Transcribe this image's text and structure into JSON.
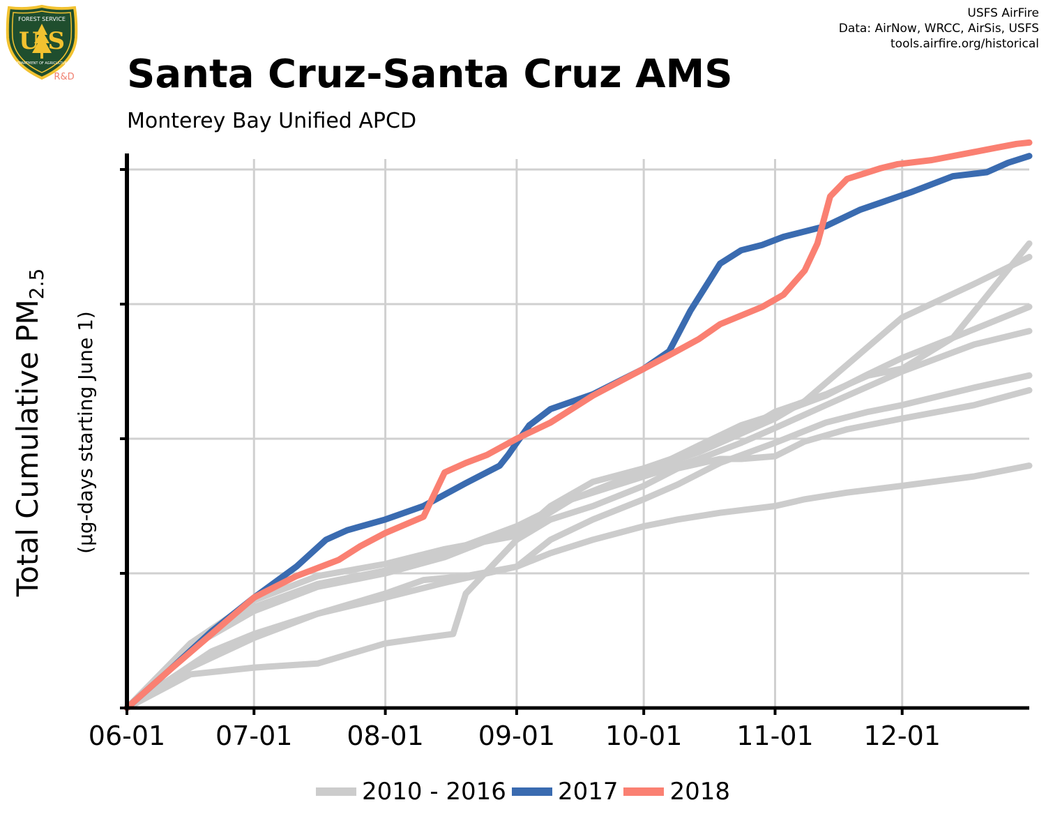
{
  "header": {
    "title": "Santa Cruz-Santa Cruz AMS",
    "subtitle": "Monterey Bay Unified APCD",
    "credits": [
      "USFS AirFire",
      "Data: AirNow, WRCC, AirSis, USFS",
      "tools.airfire.org/historical"
    ]
  },
  "logo": {
    "text_top": "FOREST SERVICE",
    "text_center": "U S",
    "text_bottom": "DEPARTMENT OF AGRICULTURE",
    "text_rd": "R&D",
    "colors": {
      "shield": "#1f4e2e",
      "border": "#f2c230",
      "letters": "#f2c230",
      "rd": "#f08070"
    }
  },
  "chart_data": {
    "type": "line",
    "title": "Santa Cruz-Santa Cruz AMS",
    "subtitle": "Monterey Bay Unified APCD",
    "ylabel_main": "Total Cumulative PM",
    "ylabel_sub": "2.5",
    "ylabel_note": "(µg-days starting June 1)",
    "x_tick_labels": [
      "06-01",
      "07-01",
      "08-01",
      "09-01",
      "10-01",
      "11-01",
      "12-01"
    ],
    "x_tick_days": [
      0,
      30,
      61,
      92,
      122,
      153,
      183
    ],
    "xlim": [
      0,
      213
    ],
    "ylim": [
      0,
      4.12
    ],
    "y_gridlines": [
      1,
      2,
      3,
      4
    ],
    "y_tick_labels_shown": false,
    "grid": true,
    "legend_position": "bottom",
    "legend": [
      {
        "label": "2010 - 2016",
        "color": "#cccccc"
      },
      {
        "label": "2017",
        "color": "#3a6bb0"
      },
      {
        "label": "2018",
        "color": "#fa8072"
      }
    ],
    "series": [
      {
        "group": "2010 - 2016",
        "color": "#cccccc",
        "x": [
          0,
          15,
          30,
          45,
          61,
          70,
          77,
          80,
          92,
          100,
          110,
          122,
          130,
          140,
          145,
          153,
          160,
          170,
          183,
          200,
          213
        ],
        "y": [
          0,
          0.25,
          0.3,
          0.33,
          0.48,
          0.52,
          0.55,
          0.85,
          1.25,
          1.4,
          1.5,
          1.65,
          1.78,
          1.85,
          1.85,
          1.87,
          1.98,
          2.07,
          2.15,
          2.25,
          2.36
        ]
      },
      {
        "group": "2010 - 2016",
        "color": "#cccccc",
        "x": [
          0,
          20,
          30,
          45,
          61,
          70,
          80,
          92,
          100,
          110,
          122,
          130,
          140,
          153,
          160,
          170,
          183,
          200,
          213
        ],
        "y": [
          0,
          0.42,
          0.55,
          0.7,
          0.85,
          0.95,
          0.98,
          1.05,
          1.15,
          1.25,
          1.35,
          1.4,
          1.45,
          1.5,
          1.55,
          1.6,
          1.65,
          1.72,
          1.8
        ]
      },
      {
        "group": "2010 - 2016",
        "color": "#cccccc",
        "x": [
          0,
          15,
          30,
          45,
          61,
          75,
          92,
          100,
          110,
          122,
          130,
          140,
          153,
          165,
          175,
          183,
          200,
          213
        ],
        "y": [
          0,
          0.3,
          0.52,
          0.7,
          0.82,
          0.93,
          1.05,
          1.25,
          1.4,
          1.55,
          1.66,
          1.82,
          1.97,
          2.12,
          2.2,
          2.25,
          2.38,
          2.47
        ]
      },
      {
        "group": "2010 - 2016",
        "color": "#cccccc",
        "x": [
          0,
          15,
          30,
          45,
          61,
          75,
          92,
          105,
          120,
          135,
          145,
          153,
          165,
          183,
          200,
          213
        ],
        "y": [
          0,
          0.45,
          0.72,
          0.9,
          1.0,
          1.12,
          1.33,
          1.55,
          1.7,
          1.85,
          1.97,
          2.08,
          2.25,
          2.5,
          2.7,
          2.8
        ]
      },
      {
        "group": "2010 - 2016",
        "color": "#cccccc",
        "x": [
          0,
          15,
          30,
          45,
          61,
          75,
          92,
          105,
          120,
          135,
          145,
          153,
          165,
          175,
          183,
          195,
          213
        ],
        "y": [
          0,
          0.48,
          0.75,
          0.92,
          1.02,
          1.15,
          1.35,
          1.55,
          1.72,
          1.95,
          2.1,
          2.18,
          2.32,
          2.48,
          2.6,
          2.75,
          2.98
        ]
      },
      {
        "group": "2010 - 2016",
        "color": "#cccccc",
        "x": [
          0,
          15,
          30,
          45,
          61,
          75,
          92,
          105,
          122,
          135,
          153,
          160,
          170,
          183,
          200,
          213
        ],
        "y": [
          0,
          0.47,
          0.73,
          0.92,
          1.02,
          1.16,
          1.3,
          1.55,
          1.76,
          1.9,
          2.15,
          2.28,
          2.55,
          2.9,
          3.15,
          3.35
        ]
      },
      {
        "group": "2010 - 2016",
        "color": "#cccccc",
        "x": [
          0,
          15,
          30,
          45,
          61,
          75,
          92,
          100,
          110,
          122,
          135,
          145,
          153,
          165,
          175,
          183,
          195,
          213
        ],
        "y": [
          0,
          0.48,
          0.8,
          0.98,
          1.07,
          1.18,
          1.28,
          1.5,
          1.68,
          1.78,
          1.92,
          2.05,
          2.2,
          2.33,
          2.47,
          2.52,
          2.75,
          3.45
        ]
      },
      {
        "group": "2017",
        "color": "#3a6bb0",
        "x": [
          0,
          10,
          20,
          30,
          40,
          47,
          52,
          61,
          70,
          80,
          88,
          90,
          92,
          95,
          100,
          110,
          122,
          128,
          133,
          135,
          138,
          140,
          145,
          150,
          155,
          165,
          173,
          185,
          195,
          203,
          208,
          213
        ],
        "y": [
          0,
          0.28,
          0.57,
          0.82,
          1.05,
          1.25,
          1.32,
          1.4,
          1.5,
          1.67,
          1.8,
          1.88,
          1.97,
          2.1,
          2.22,
          2.33,
          2.52,
          2.65,
          2.95,
          3.05,
          3.2,
          3.3,
          3.4,
          3.44,
          3.5,
          3.58,
          3.7,
          3.83,
          3.95,
          3.98,
          4.05,
          4.1
        ]
      },
      {
        "group": "2018",
        "color": "#fa8072",
        "label": "2018",
        "x": [
          0,
          10,
          20,
          30,
          40,
          50,
          55,
          61,
          70,
          75,
          80,
          85,
          92,
          100,
          110,
          122,
          128,
          135,
          140,
          150,
          155,
          160,
          163,
          166,
          170,
          174,
          178,
          182,
          190,
          200,
          205,
          210,
          213
        ],
        "y": [
          0,
          0.28,
          0.55,
          0.82,
          0.98,
          1.1,
          1.2,
          1.3,
          1.42,
          1.75,
          1.82,
          1.88,
          2.0,
          2.12,
          2.32,
          2.52,
          2.62,
          2.74,
          2.85,
          2.98,
          3.07,
          3.25,
          3.45,
          3.8,
          3.93,
          3.97,
          4.01,
          4.04,
          4.07,
          4.13,
          4.16,
          4.19,
          4.2
        ]
      }
    ]
  }
}
